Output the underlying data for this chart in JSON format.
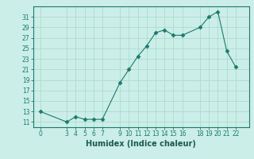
{
  "x": [
    0,
    3,
    4,
    5,
    6,
    7,
    9,
    10,
    11,
    12,
    13,
    14,
    15,
    16,
    18,
    19,
    20,
    21,
    22
  ],
  "y": [
    13,
    11,
    12,
    11.5,
    11.5,
    11.5,
    18.5,
    21,
    23.5,
    25.5,
    28,
    28.5,
    27.5,
    27.5,
    29,
    31,
    32,
    24.5,
    21.5
  ],
  "line_color": "#1a7a6e",
  "marker": "D",
  "marker_size": 2.5,
  "bg_color": "#cceee8",
  "grid_color": "#aaddcc",
  "xlabel": "Humidex (Indice chaleur)",
  "xlim": [
    -0.8,
    23.5
  ],
  "ylim": [
    10,
    33
  ],
  "yticks": [
    11,
    13,
    15,
    17,
    19,
    21,
    23,
    25,
    27,
    29,
    31
  ],
  "xticks": [
    0,
    3,
    4,
    5,
    6,
    7,
    9,
    10,
    11,
    12,
    13,
    14,
    15,
    16,
    18,
    19,
    20,
    21,
    22
  ],
  "tick_label_color": "#1a5a50",
  "xlabel_color": "#1a5a50",
  "axis_color": "#1a7a6e",
  "xlabel_fontsize": 7,
  "tick_fontsize": 5.5
}
